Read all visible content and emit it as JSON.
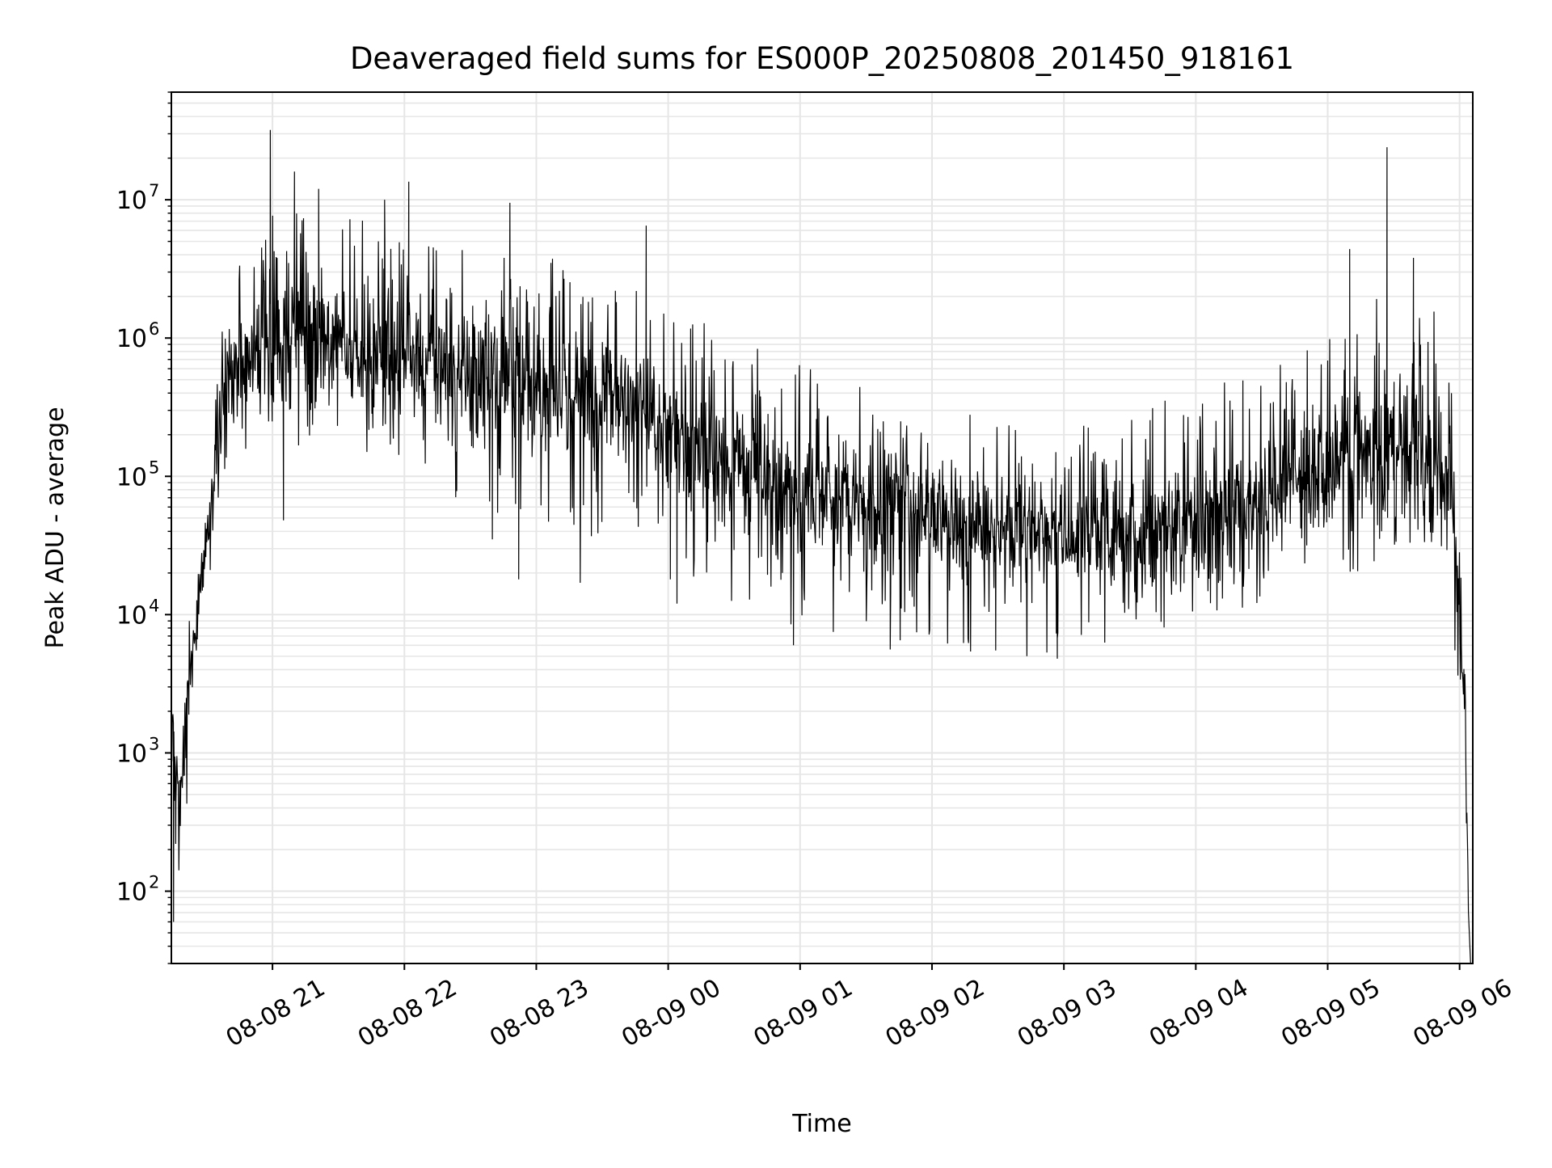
{
  "chart_data": {
    "type": "line",
    "title": "Deaveraged field sums for ES000P_20250808_201450_918161",
    "xlabel": "Time",
    "ylabel": "Peak ADU - average",
    "yscale": "log",
    "grid": true,
    "line_color": "#000000",
    "grid_color": "#e6e6e6",
    "xlim": [
      "2025-08-08 20:14",
      "2025-08-09 06:06"
    ],
    "ylim": [
      30,
      60000000
    ],
    "x_ticks": [
      {
        "value": "2025-08-08 21:00",
        "label": "08-08 21"
      },
      {
        "value": "2025-08-08 22:00",
        "label": "08-08 22"
      },
      {
        "value": "2025-08-08 23:00",
        "label": "08-08 23"
      },
      {
        "value": "2025-08-09 00:00",
        "label": "08-09 00"
      },
      {
        "value": "2025-08-09 01:00",
        "label": "08-09 01"
      },
      {
        "value": "2025-08-09 02:00",
        "label": "08-09 02"
      },
      {
        "value": "2025-08-09 03:00",
        "label": "08-09 03"
      },
      {
        "value": "2025-08-09 04:00",
        "label": "08-09 04"
      },
      {
        "value": "2025-08-09 05:00",
        "label": "08-09 05"
      },
      {
        "value": "2025-08-09 06:00",
        "label": "08-09 06"
      }
    ],
    "y_ticks": [
      {
        "value": 100,
        "base": "10",
        "exp": "2"
      },
      {
        "value": 1000,
        "base": "10",
        "exp": "3"
      },
      {
        "value": 10000,
        "base": "10",
        "exp": "4"
      },
      {
        "value": 100000,
        "base": "10",
        "exp": "5"
      },
      {
        "value": 1000000,
        "base": "10",
        "exp": "6"
      },
      {
        "value": 10000000,
        "base": "10",
        "exp": "7"
      }
    ],
    "series": [
      {
        "x": [
          "2025-08-08 20:14",
          "2025-08-08 20:16",
          "2025-08-08 20:18",
          "2025-08-08 20:20",
          "2025-08-08 20:24",
          "2025-08-08 20:28",
          "2025-08-08 20:32",
          "2025-08-08 20:36",
          "2025-08-08 20:40",
          "2025-08-08 20:45",
          "2025-08-08 20:50",
          "2025-08-08 20:55",
          "2025-08-08 21:00",
          "2025-08-08 21:10",
          "2025-08-08 21:20",
          "2025-08-08 21:30",
          "2025-08-08 21:40",
          "2025-08-08 21:50",
          "2025-08-08 22:00",
          "2025-08-08 22:15",
          "2025-08-08 22:30",
          "2025-08-08 22:45",
          "2025-08-08 23:00",
          "2025-08-08 23:15",
          "2025-08-08 23:30",
          "2025-08-08 23:45",
          "2025-08-09 00:00",
          "2025-08-09 00:15",
          "2025-08-09 00:30",
          "2025-08-09 00:45",
          "2025-08-09 01:00",
          "2025-08-09 01:15",
          "2025-08-09 01:30",
          "2025-08-09 01:45",
          "2025-08-09 02:00",
          "2025-08-09 02:15",
          "2025-08-09 02:30",
          "2025-08-09 02:45",
          "2025-08-09 03:00",
          "2025-08-09 03:15",
          "2025-08-09 03:30",
          "2025-08-09 03:45",
          "2025-08-09 04:00",
          "2025-08-09 04:15",
          "2025-08-09 04:30",
          "2025-08-09 04:45",
          "2025-08-09 05:00",
          "2025-08-09 05:15",
          "2025-08-09 05:30",
          "2025-08-09 05:40",
          "2025-08-09 05:50",
          "2025-08-09 05:55",
          "2025-08-09 05:58",
          "2025-08-09 06:00",
          "2025-08-09 06:01",
          "2025-08-09 06:02",
          "2025-08-09 06:03",
          "2025-08-09 06:04"
        ],
        "median": [
          1000,
          600,
          400,
          1500,
          6000,
          20000,
          50000,
          250000,
          500000,
          600000,
          700000,
          800000,
          1000000,
          900000,
          1000000,
          900000,
          800000,
          700000,
          700000,
          600000,
          500000,
          500000,
          450000,
          400000,
          350000,
          300000,
          200000,
          150000,
          120000,
          100000,
          80000,
          70000,
          60000,
          60000,
          50000,
          45000,
          40000,
          40000,
          35000,
          40000,
          40000,
          45000,
          45000,
          55000,
          70000,
          100000,
          120000,
          150000,
          150000,
          180000,
          120000,
          80000,
          40000,
          8000,
          5000,
          3000,
          500,
          80
        ],
        "low": [
          300,
          100,
          60,
          250,
          1500,
          5000,
          15000,
          80000,
          100000,
          120000,
          150000,
          180000,
          200000,
          150000,
          150000,
          150000,
          120000,
          100000,
          100000,
          80000,
          60000,
          50000,
          50000,
          40000,
          35000,
          30000,
          20000,
          15000,
          12000,
          10000,
          8000,
          7000,
          6000,
          6000,
          6000,
          5500,
          5000,
          5000,
          5000,
          6000,
          7000,
          8000,
          9000,
          10000,
          12000,
          15000,
          20000,
          20000,
          25000,
          30000,
          20000,
          10000,
          5000,
          1500,
          1000,
          500,
          100,
          30
        ],
        "high": [
          3000,
          2500,
          2000,
          4000,
          20000,
          50000,
          200000,
          1500000,
          2500000,
          4000000,
          5000000,
          6000000,
          8000000,
          10000000,
          9000000,
          10000000,
          8000000,
          6000000,
          6000000,
          5000000,
          4500000,
          4000000,
          4000000,
          3500000,
          3000000,
          2500000,
          2000000,
          1500000,
          1000000,
          800000,
          700000,
          500000,
          500000,
          400000,
          400000,
          350000,
          300000,
          280000,
          250000,
          300000,
          300000,
          350000,
          400000,
          500000,
          600000,
          800000,
          1000000,
          1500000,
          2500000,
          3000000,
          1500000,
          700000,
          200000,
          40000,
          20000,
          10000,
          3000,
          500
        ],
        "spikes": [
          {
            "x": "2025-08-08 20:59",
            "y": 32000000
          },
          {
            "x": "2025-08-08 21:10",
            "y": 16000000
          },
          {
            "x": "2025-08-08 21:21",
            "y": 12000000
          },
          {
            "x": "2025-08-08 21:51",
            "y": 10000000
          },
          {
            "x": "2025-08-08 22:02",
            "y": 13500000
          },
          {
            "x": "2025-08-08 22:48",
            "y": 9500000
          },
          {
            "x": "2025-08-08 23:50",
            "y": 6500000
          },
          {
            "x": "2025-08-09 05:10",
            "y": 4400000
          },
          {
            "x": "2025-08-09 05:27",
            "y": 24000000
          },
          {
            "x": "2025-08-09 05:39",
            "y": 3800000
          }
        ],
        "dips": [
          {
            "x": "2025-08-08 20:15",
            "y": 60
          },
          {
            "x": "2025-08-08 20:16",
            "y": 220
          },
          {
            "x": "2025-08-08 21:05",
            "y": 48000
          },
          {
            "x": "2025-08-08 22:40",
            "y": 35000
          },
          {
            "x": "2025-08-08 22:52",
            "y": 18000
          },
          {
            "x": "2025-08-08 23:20",
            "y": 17000
          },
          {
            "x": "2025-08-09 00:01",
            "y": 18000
          },
          {
            "x": "2025-08-09 00:04",
            "y": 12000
          },
          {
            "x": "2025-08-09 00:57",
            "y": 6000
          },
          {
            "x": "2025-08-09 01:41",
            "y": 5600
          },
          {
            "x": "2025-08-09 02:29",
            "y": 5500
          },
          {
            "x": "2025-08-09 02:57",
            "y": 4800
          },
          {
            "x": "2025-08-09 06:05",
            "y": 30
          }
        ]
      }
    ]
  }
}
